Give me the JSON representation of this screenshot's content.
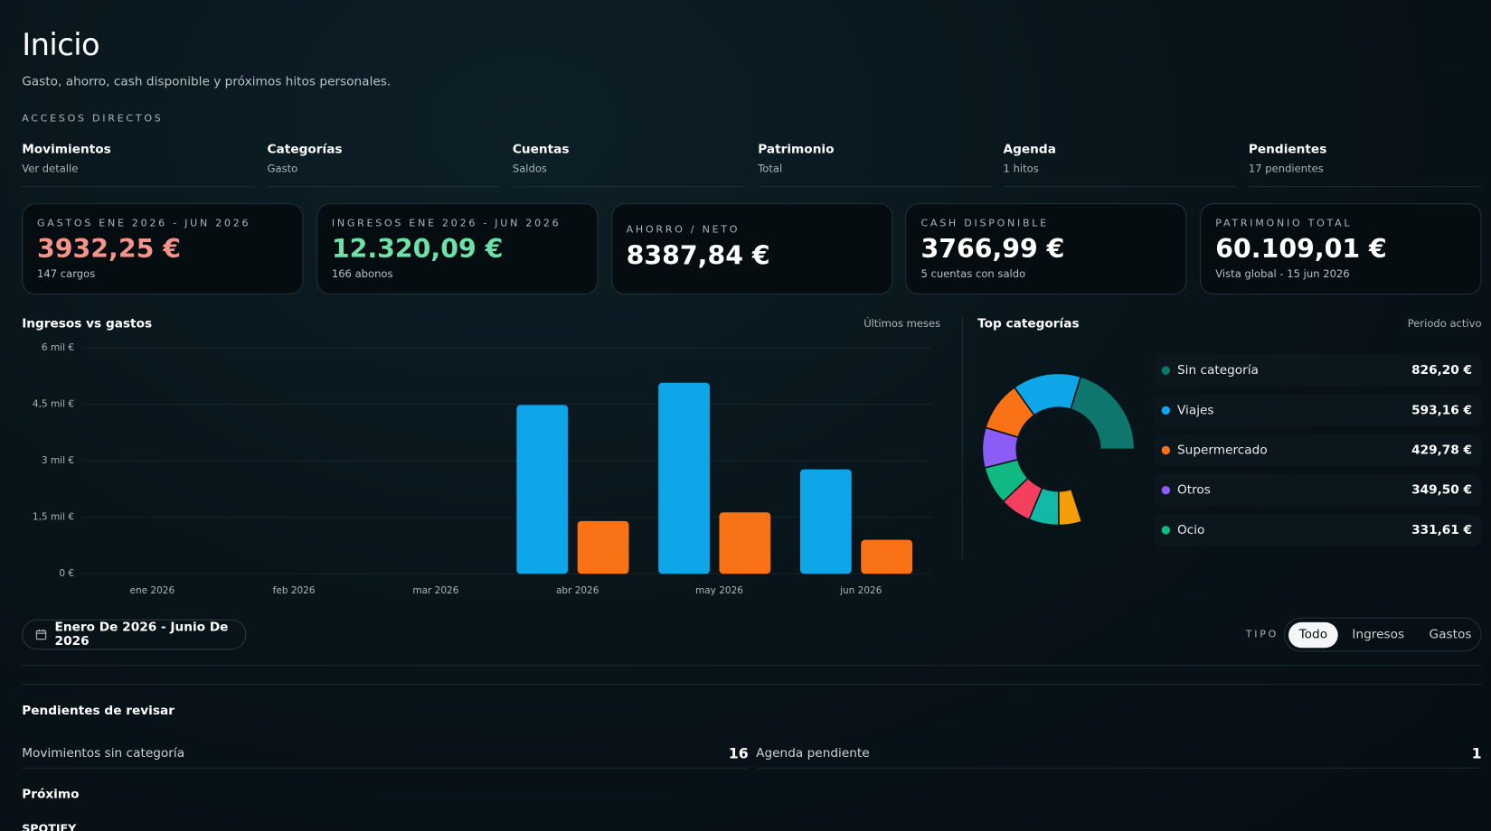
{
  "header": {
    "title": "Inicio",
    "subtitle": "Gasto, ahorro, cash disponible y próximos hitos personales."
  },
  "shortcuts": {
    "title": "ACCESOS DIRECTOS",
    "items": [
      {
        "label": "Movimientos",
        "sub": "Ver detalle"
      },
      {
        "label": "Categorías",
        "sub": "Gasto"
      },
      {
        "label": "Cuentas",
        "sub": "Saldos"
      },
      {
        "label": "Patrimonio",
        "sub": "Total"
      },
      {
        "label": "Agenda",
        "sub": "1 hitos"
      },
      {
        "label": "Pendientes",
        "sub": "17 pendientes"
      }
    ]
  },
  "kpis": [
    {
      "label": "GASTOS ENE 2026 - JUN 2026",
      "value": "3932,25 €",
      "note": "147 cargos",
      "color": "#f4938c"
    },
    {
      "label": "INGRESOS ENE 2026 - JUN 2026",
      "value": "12.320,09 €",
      "note": "166 abonos",
      "color": "#6ee0a8"
    },
    {
      "label": "AHORRO / NETO",
      "value": "8387,84 €",
      "color": "#ffffff"
    },
    {
      "label": "CASH DISPONIBLE",
      "value": "3766,99 €",
      "note": "5 cuentas con saldo",
      "color": "#ffffff"
    },
    {
      "label": "PATRIMONIO TOTAL",
      "value": "60.109,01 €",
      "note": "Vista global - 15 jun 2026",
      "color": "#ffffff"
    }
  ],
  "chart_data": [
    {
      "type": "bar",
      "title": "Ingresos vs gastos",
      "subtitle": "Últimos meses",
      "categories": [
        "ene 2026",
        "feb 2026",
        "mar 2026",
        "abr 2026",
        "may 2026",
        "jun 2026"
      ],
      "series": [
        {
          "color": "#0ea5e9",
          "values": [
            0,
            0,
            0,
            4480,
            5070,
            2770
          ]
        },
        {
          "color": "#f97316",
          "values": [
            0,
            0,
            0,
            1400,
            1630,
            900
          ]
        }
      ],
      "ylim": [
        0,
        6000
      ],
      "yticks": [
        {
          "value": 0,
          "label": "0 €"
        },
        {
          "value": 1500,
          "label": "1,5 mil €"
        },
        {
          "value": 3000,
          "label": "3 mil €"
        },
        {
          "value": 4500,
          "label": "4,5 mil €"
        },
        {
          "value": 6000,
          "label": "6 mil €"
        }
      ],
      "grid": true
    },
    {
      "type": "pie",
      "title": "Top categorías",
      "subtitle": "Periodo activo",
      "categories": [
        "Sin categoría",
        "Viajes",
        "Supermercado",
        "Otros",
        "Ocio",
        null,
        null,
        null
      ],
      "values": [
        826.2,
        593.16,
        429.78,
        349.5,
        331.61,
        270,
        260,
        200
      ],
      "value_labels": [
        "826,20 €",
        "593,16 €",
        "429,78 €",
        "349,50 €",
        "331,61 €",
        null,
        null,
        null
      ],
      "colors": [
        "#0f766e",
        "#0ea5e9",
        "#f97316",
        "#8b5cf6",
        "#10b981",
        "#f43f5e",
        "#14b8a6",
        "#f59e0b"
      ]
    }
  ],
  "filters": {
    "date": "Enero De 2026 - Junio De 2026",
    "type_label": "TIPO",
    "options": [
      "Todo",
      "Ingresos",
      "Gastos"
    ],
    "active": 0
  },
  "pending": {
    "title": "Pendientes de revisar",
    "items": [
      {
        "label": "Movimientos sin categoría",
        "count": 16
      },
      {
        "label": "Agenda pendiente",
        "count": 1
      }
    ]
  },
  "upcoming": {
    "title": "Próximo",
    "items": [
      "SPOTIFY"
    ]
  }
}
